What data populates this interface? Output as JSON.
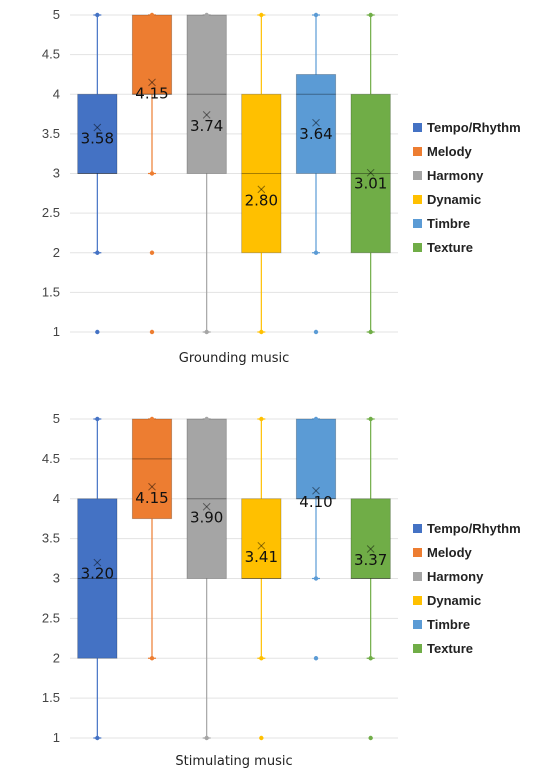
{
  "chart_data": [
    {
      "type": "box",
      "xlabel": "Grounding music",
      "ylim": [
        1,
        5
      ],
      "yticks": [
        "1",
        "1.5",
        "2",
        "2.5",
        "3",
        "3.5",
        "4",
        "4.5",
        "5"
      ],
      "legend_position": "right",
      "grid": true,
      "series": [
        {
          "name": "Tempo/Rhythm",
          "color": "#4472C4",
          "q1": 3,
          "q3": 4,
          "median": 3,
          "whisker_low": 2,
          "whisker_high": 5,
          "mean": 3.58,
          "mean_label": "3.58",
          "outliers": [
            1
          ]
        },
        {
          "name": "Melody",
          "color": "#ED7D31",
          "q1": 4,
          "q3": 5,
          "median": 4,
          "whisker_low": 3,
          "whisker_high": 5,
          "mean": 4.15,
          "mean_label": "4.15",
          "outliers": [
            2,
            1
          ]
        },
        {
          "name": "Harmony",
          "color": "#A5A5A5",
          "q1": 3,
          "q3": 5,
          "median": 4,
          "whisker_low": 1,
          "whisker_high": 5,
          "mean": 3.74,
          "mean_label": "3.74",
          "outliers": []
        },
        {
          "name": "Dynamic",
          "color": "#FFC000",
          "q1": 2,
          "q3": 4,
          "median": 3,
          "whisker_low": 1,
          "whisker_high": 5,
          "mean": 2.8,
          "mean_label": "2.80",
          "outliers": []
        },
        {
          "name": "Timbre",
          "color": "#5B9BD5",
          "q1": 3,
          "q3": 4.25,
          "median": 4,
          "whisker_low": 2,
          "whisker_high": 5,
          "mean": 3.64,
          "mean_label": "3.64",
          "outliers": [
            1
          ]
        },
        {
          "name": "Texture",
          "color": "#70AD47",
          "q1": 2,
          "q3": 4,
          "median": 3,
          "whisker_low": 1,
          "whisker_high": 5,
          "mean": 3.01,
          "mean_label": "3.01",
          "outliers": []
        }
      ]
    },
    {
      "type": "box",
      "xlabel": "Stimulating music",
      "ylim": [
        1,
        5
      ],
      "yticks": [
        "1",
        "1.5",
        "2",
        "2.5",
        "3",
        "3.5",
        "4",
        "4.5",
        "5"
      ],
      "legend_position": "right",
      "grid": true,
      "series": [
        {
          "name": "Tempo/Rhythm",
          "color": "#4472C4",
          "q1": 2,
          "q3": 4,
          "median": 3,
          "whisker_low": 1,
          "whisker_high": 5,
          "mean": 3.2,
          "mean_label": "3.20",
          "outliers": []
        },
        {
          "name": "Melody",
          "color": "#ED7D31",
          "q1": 3.75,
          "q3": 5,
          "median": 4.5,
          "whisker_low": 2,
          "whisker_high": 5,
          "mean": 4.15,
          "mean_label": "4.15",
          "outliers": []
        },
        {
          "name": "Harmony",
          "color": "#A5A5A5",
          "q1": 3,
          "q3": 5,
          "median": 4,
          "whisker_low": 1,
          "whisker_high": 5,
          "mean": 3.9,
          "mean_label": "3.90",
          "outliers": []
        },
        {
          "name": "Dynamic",
          "color": "#FFC000",
          "q1": 3,
          "q3": 4,
          "median": 3,
          "whisker_low": 2,
          "whisker_high": 5,
          "mean": 3.41,
          "mean_label": "3.41",
          "outliers": [
            1
          ]
        },
        {
          "name": "Timbre",
          "color": "#5B9BD5",
          "q1": 4,
          "q3": 5,
          "median": 4,
          "whisker_low": 3,
          "whisker_high": 5,
          "mean": 4.1,
          "mean_label": "4.10",
          "outliers": [
            2
          ]
        },
        {
          "name": "Texture",
          "color": "#70AD47",
          "q1": 3,
          "q3": 4,
          "median": 3,
          "whisker_low": 2,
          "whisker_high": 5,
          "mean": 3.37,
          "mean_label": "3.37",
          "outliers": [
            1
          ]
        }
      ]
    }
  ]
}
